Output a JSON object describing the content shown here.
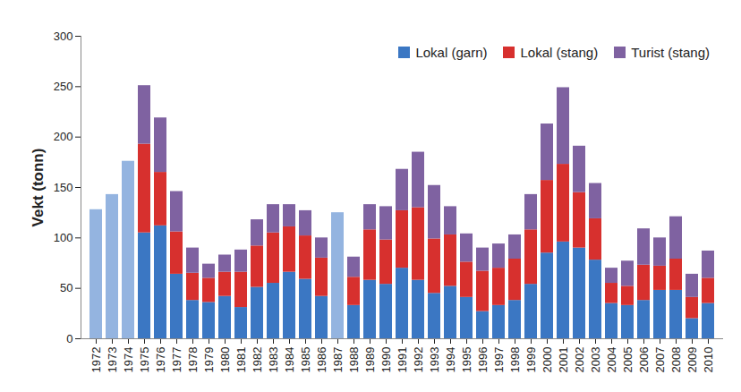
{
  "chart_data": {
    "type": "bar",
    "stacked": true,
    "y_label": "Vekt (tonn)",
    "categories": [
      1972,
      1973,
      1974,
      1975,
      1976,
      1977,
      1978,
      1979,
      1980,
      1981,
      1982,
      1983,
      1984,
      1985,
      1986,
      1987,
      1988,
      1989,
      1990,
      1991,
      1992,
      1993,
      1994,
      1995,
      1996,
      1997,
      1998,
      1999,
      2000,
      2001,
      2002,
      2003,
      2004,
      2005,
      2006,
      2007,
      2008,
      2009,
      2010
    ],
    "series": [
      {
        "name": "Lokal (garn)",
        "color": "#3b77c3",
        "values": [
          null,
          null,
          null,
          105,
          112,
          64,
          38,
          36,
          42,
          31,
          51,
          55,
          66,
          59,
          42,
          null,
          33,
          58,
          54,
          70,
          58,
          45,
          52,
          41,
          27,
          33,
          38,
          54,
          85,
          96,
          90,
          78,
          35,
          33,
          38,
          48,
          48,
          20,
          35
        ]
      },
      {
        "name": "Lokal (stang)",
        "color": "#d7302e",
        "values": [
          null,
          null,
          null,
          88,
          53,
          42,
          27,
          24,
          24,
          35,
          41,
          50,
          45,
          43,
          38,
          null,
          28,
          50,
          44,
          57,
          72,
          54,
          51,
          35,
          40,
          37,
          41,
          54,
          72,
          77,
          55,
          41,
          20,
          19,
          35,
          24,
          31,
          21,
          25
        ]
      },
      {
        "name": "Turist (stang)",
        "color": "#7f62a1",
        "values": [
          null,
          null,
          null,
          58,
          54,
          40,
          25,
          14,
          17,
          22,
          26,
          28,
          22,
          25,
          20,
          null,
          20,
          25,
          33,
          41,
          55,
          53,
          28,
          28,
          23,
          24,
          24,
          35,
          56,
          76,
          46,
          35,
          15,
          25,
          36,
          28,
          42,
          23,
          27
        ]
      },
      {
        "name": null,
        "color": "#94b4e0",
        "values": [
          128,
          143,
          176,
          null,
          null,
          null,
          null,
          null,
          null,
          null,
          null,
          null,
          null,
          null,
          null,
          125,
          null,
          null,
          null,
          null,
          null,
          null,
          null,
          null,
          null,
          null,
          null,
          null,
          null,
          null,
          null,
          null,
          null,
          null,
          null,
          null,
          null,
          null,
          null
        ]
      }
    ],
    "ylim": [
      0,
      300
    ],
    "yticks": [
      0,
      50,
      100,
      150,
      200,
      250,
      300
    ],
    "grid": false,
    "legend": "top-right"
  }
}
